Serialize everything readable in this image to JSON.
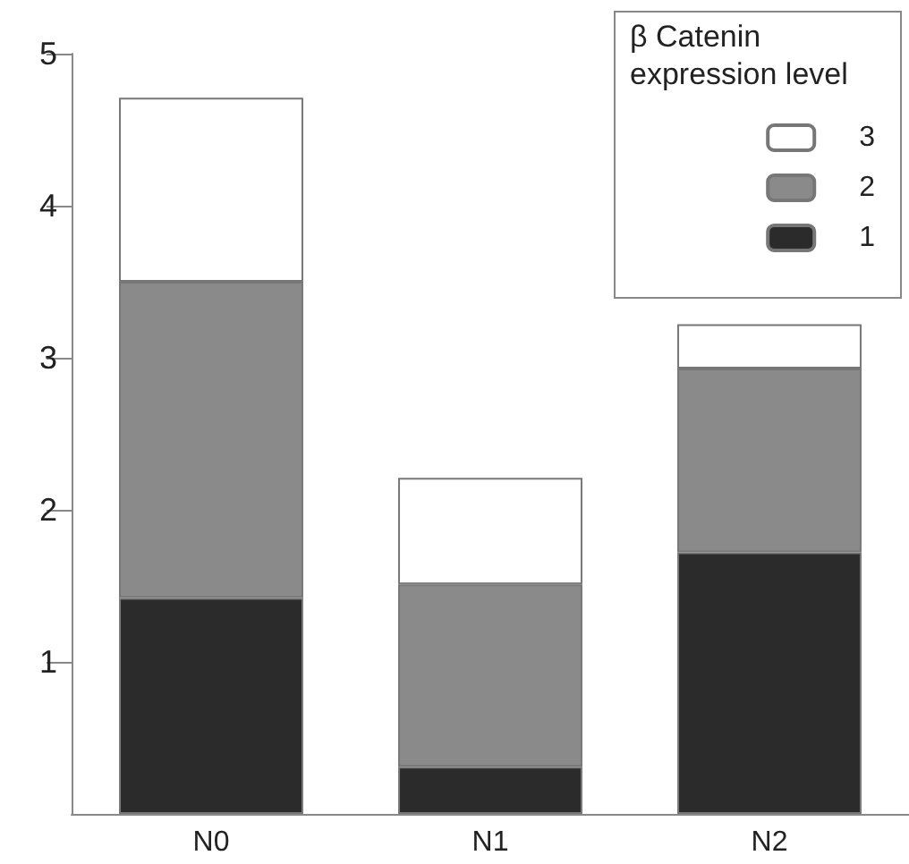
{
  "chart_data": {
    "type": "bar",
    "stacked": true,
    "categories": [
      "N0",
      "N1",
      "N2"
    ],
    "series": [
      {
        "name": "1",
        "color": "#2b2b2b",
        "values": [
          1.42,
          0.31,
          1.72
        ]
      },
      {
        "name": "2",
        "color": "#8a8a8a",
        "values": [
          2.08,
          1.2,
          1.21
        ]
      },
      {
        "name": "3",
        "color": "#ffffff",
        "values": [
          1.21,
          0.7,
          0.29
        ]
      }
    ],
    "legend_title": "β Catenin expression level",
    "legend": "top right",
    "ylim": [
      0,
      5
    ],
    "yticks": [
      1,
      2,
      3,
      4,
      5
    ],
    "grid": false
  }
}
